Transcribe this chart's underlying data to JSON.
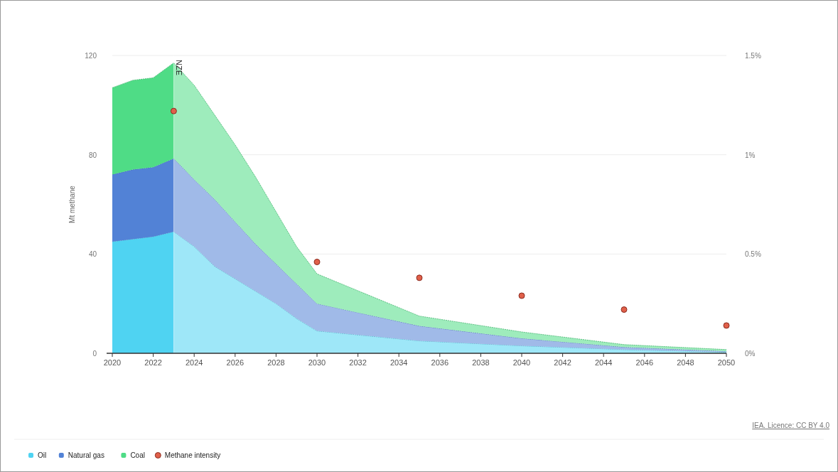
{
  "chart_data": {
    "type": "area",
    "stacked": true,
    "ylabel": "Mt methane",
    "x": [
      2020,
      2021,
      2022,
      2023,
      2024,
      2025,
      2026,
      2027,
      2028,
      2029,
      2030,
      2035,
      2040,
      2045,
      2050
    ],
    "xlim": [
      2020,
      2050
    ],
    "xticks": [
      2020,
      2022,
      2024,
      2026,
      2028,
      2030,
      2032,
      2034,
      2036,
      2038,
      2040,
      2042,
      2044,
      2046,
      2048,
      2050
    ],
    "ylim": [
      0,
      120
    ],
    "yticks": [
      0,
      40,
      80,
      120
    ],
    "y2lim": [
      0,
      1.5
    ],
    "y2ticks": [
      {
        "value": 0,
        "label": "0%"
      },
      {
        "value": 0.5,
        "label": "0.5%"
      },
      {
        "value": 1,
        "label": "1%"
      },
      {
        "value": 1.5,
        "label": "1.5%"
      }
    ],
    "series": [
      {
        "name": "Oil",
        "color": "#4fd3f2",
        "values": [
          45,
          46,
          47,
          49,
          43,
          35,
          30,
          25,
          20,
          14,
          9,
          5,
          3,
          1.5,
          0.5
        ]
      },
      {
        "name": "Natural gas",
        "color": "#5282d6",
        "values": [
          27,
          28,
          28,
          29.5,
          27,
          27,
          23,
          19,
          16,
          14,
          11,
          6,
          3,
          1,
          0.3
        ]
      },
      {
        "name": "Coal",
        "color": "#4fdc86",
        "values": [
          35,
          36,
          36,
          38.5,
          38,
          34,
          31,
          27,
          21,
          15,
          12,
          4,
          2.6,
          1,
          0.7
        ]
      },
      {
        "name": "Methane intensity",
        "type": "scatter",
        "axis": "y2",
        "color": "#e0604a",
        "marker": "circle",
        "x": [
          2023,
          2030,
          2035,
          2040,
          2045,
          2050
        ],
        "values": [
          1.22,
          0.46,
          0.38,
          0.29,
          0.22,
          0.14
        ]
      }
    ],
    "ref_lines": [
      {
        "axis": "x",
        "value": 2023,
        "label": "NZE"
      }
    ],
    "grid": "y",
    "legend": "bottom left",
    "annotations": [
      "IEA. Licence: CC BY 4.0"
    ]
  }
}
